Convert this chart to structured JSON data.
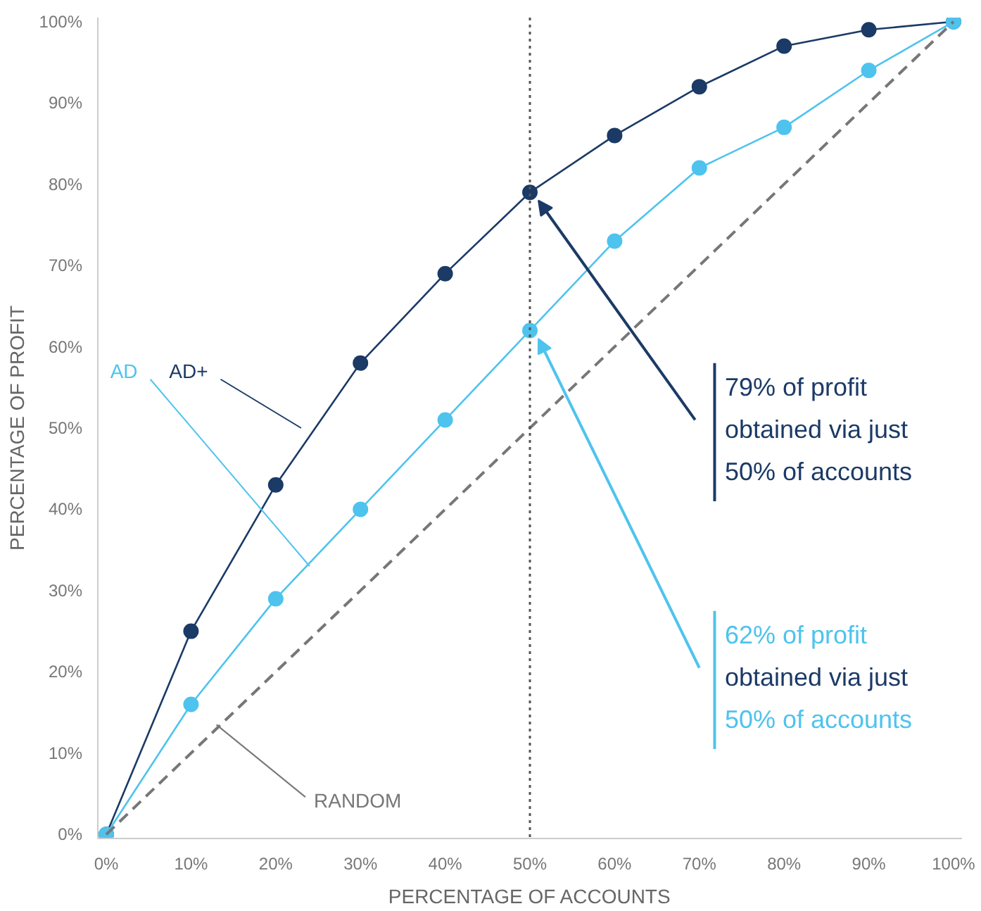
{
  "chart_data": {
    "type": "line",
    "xlabel": "PERCENTAGE OF ACCOUNTS",
    "ylabel": "PERCENTAGE OF PROFIT",
    "x": [
      0,
      10,
      20,
      30,
      40,
      50,
      60,
      70,
      80,
      90,
      100
    ],
    "series": [
      {
        "name": "AD+",
        "color": "#1b3a66",
        "values": [
          0,
          25,
          43,
          58,
          69,
          79,
          86,
          92,
          97,
          99,
          100
        ],
        "marker": "circle",
        "line_style": "solid"
      },
      {
        "name": "AD",
        "color": "#4ec3ee",
        "values": [
          0,
          16,
          29,
          40,
          51,
          62,
          73,
          82,
          87,
          94,
          100
        ],
        "marker": "circle",
        "line_style": "solid"
      },
      {
        "name": "RANDOM",
        "color": "#777777",
        "values": [
          0,
          10,
          20,
          30,
          40,
          50,
          60,
          70,
          80,
          90,
          100
        ],
        "marker": "none",
        "line_style": "dashed"
      }
    ],
    "xlim": [
      -1,
      101
    ],
    "ylim": [
      -0.5,
      100.5
    ],
    "xticks": [
      {
        "value": 0,
        "label": "0%"
      },
      {
        "value": 10,
        "label": "10%"
      },
      {
        "value": 20,
        "label": "20%"
      },
      {
        "value": 30,
        "label": "30%"
      },
      {
        "value": 40,
        "label": "40%"
      },
      {
        "value": 50,
        "label": "50%"
      },
      {
        "value": 60,
        "label": "60%"
      },
      {
        "value": 70,
        "label": "70%"
      },
      {
        "value": 80,
        "label": "80%"
      },
      {
        "value": 90,
        "label": "90%"
      },
      {
        "value": 100,
        "label": "100%"
      }
    ],
    "yticks": [
      {
        "value": 0,
        "label": "0%"
      },
      {
        "value": 10,
        "label": "10%"
      },
      {
        "value": 20,
        "label": "20%"
      },
      {
        "value": 30,
        "label": "30%"
      },
      {
        "value": 40,
        "label": "40%"
      },
      {
        "value": 50,
        "label": "50%"
      },
      {
        "value": 60,
        "label": "60%"
      },
      {
        "value": 70,
        "label": "70%"
      },
      {
        "value": 80,
        "label": "80%"
      },
      {
        "value": 90,
        "label": "90%"
      },
      {
        "value": 100,
        "label": "100%"
      }
    ],
    "ref_lines": [
      {
        "axis": "x",
        "value": 50,
        "color": "#555555",
        "line_style": "dotted"
      }
    ],
    "annotations": [
      {
        "text": "79% of profit\nobtained via just\n50% of accounts",
        "x": 50,
        "y": 79
      },
      {
        "text": "62% of profit\nobtained via just\n50% of accounts",
        "x": 50,
        "y": 62
      }
    ],
    "grid": false
  }
}
